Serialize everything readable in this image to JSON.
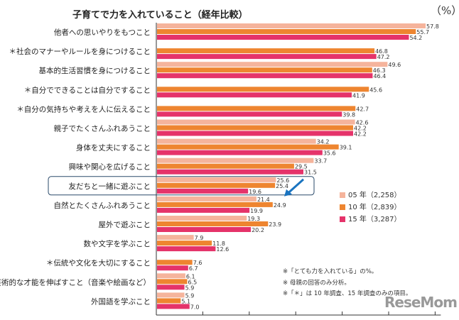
{
  "chart_data": {
    "type": "bar",
    "orientation": "horizontal",
    "title": "子育てで力を入れていること（経年比較）",
    "unit": "（%）",
    "xlim": [
      0,
      60
    ],
    "grid": false,
    "legend_position": "right",
    "categories": [
      "他者への思いやりをもつこと",
      "＊社会のマナーやルールを身につけること",
      "基本的生活習慣を身につけること",
      "＊自分でできることは自分ですること",
      "＊自分の気持ちや考えを人に伝えること",
      "親子でたくさんふれあうこと",
      "身体を丈夫にすること",
      "興味や関心を広げること",
      "友だちと一緒に遊ぶこと",
      "自然とたくさんふれあうこと",
      "屋外で遊ぶこと",
      "数や文字を学ぶこと",
      "＊伝統や文化を大切にすること",
      "芸術的な才能を伸ばすこと（音楽や絵画など）",
      "外国語を学ぶこと"
    ],
    "highlighted_category": "友だちと一緒に遊ぶこと",
    "series": [
      {
        "name": "05 年（2,258）",
        "color": "#f5b49c",
        "values": [
          57.8,
          null,
          49.6,
          null,
          null,
          42.6,
          34.2,
          33.7,
          25.6,
          21.4,
          19.3,
          7.9,
          null,
          6.1,
          5.9
        ]
      },
      {
        "name": "10 年（2,839）",
        "color": "#ee8530",
        "values": [
          55.7,
          46.8,
          46.3,
          45.6,
          42.7,
          42.2,
          39.1,
          29.5,
          25.4,
          24.9,
          23.9,
          11.8,
          7.6,
          6.5,
          5.1
        ]
      },
      {
        "name": "15 年（3,287）",
        "color": "#e5336a",
        "values": [
          54.2,
          47.2,
          46.4,
          41.9,
          39.8,
          42.2,
          35.6,
          31.5,
          19.6,
          19.9,
          20.2,
          12.6,
          6.7,
          5.9,
          7.0
        ]
      }
    ],
    "notes": [
      "※「とても力を入れている」の%。",
      "※ 母親の回答のみ分析。",
      "※「＊」は 10 年調査、15 年調査のみの項目。"
    ]
  },
  "logo": "ReseMom"
}
